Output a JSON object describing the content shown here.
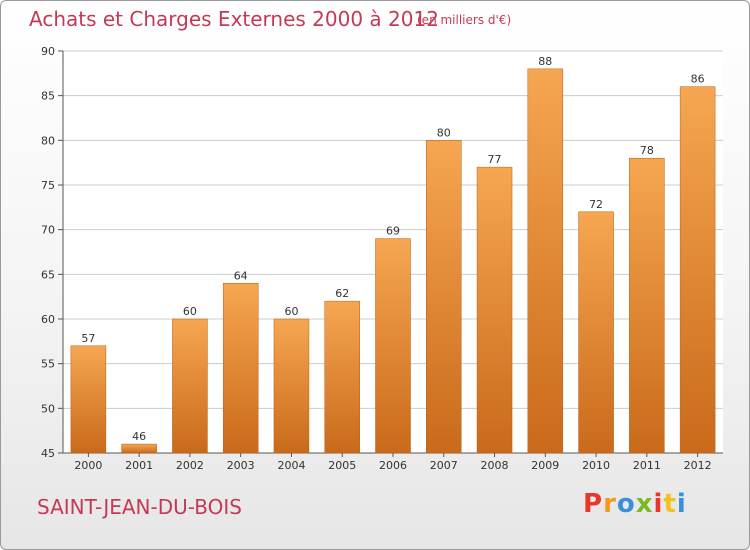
{
  "chart_data": {
    "type": "bar",
    "title": "Achats et Charges Externes 2000 à 2012",
    "subtitle": "(en milliers d'€)",
    "categories": [
      "2000",
      "2001",
      "2002",
      "2003",
      "2004",
      "2005",
      "2006",
      "2007",
      "2008",
      "2009",
      "2010",
      "2011",
      "2012"
    ],
    "values": [
      57,
      46,
      60,
      64,
      60,
      62,
      69,
      80,
      77,
      88,
      72,
      78,
      86
    ],
    "ylim": [
      45,
      90
    ],
    "yticks": [
      45,
      50,
      55,
      60,
      65,
      70,
      75,
      80,
      85,
      90
    ],
    "grid": true,
    "bar_color_top": "#f6a651",
    "bar_color_bottom": "#c96a1b",
    "xlabel": "",
    "ylabel": ""
  },
  "location_label": "SAINT-JEAN-DU-BOIS",
  "logo": {
    "text": "Proxiti",
    "colors": [
      "#e8372a",
      "#f29a1f",
      "#3a8fd8",
      "#7ab828",
      "#e8372a",
      "#f2c21f",
      "#3a8fd8"
    ]
  },
  "colors": {
    "title": "#c43a56",
    "grid": "#cccccc",
    "axis": "#555555"
  }
}
